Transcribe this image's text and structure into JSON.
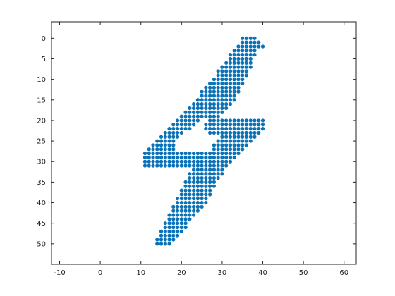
{
  "chart_data": {
    "type": "scatter",
    "title": "",
    "xlabel": "",
    "ylabel": "",
    "xlim": [
      -12,
      63
    ],
    "ylim": [
      -4,
      55
    ],
    "y_reversed": true,
    "grid": false,
    "legend": "none",
    "marker_color": "#0b72b8",
    "xticks": [
      -10,
      0,
      10,
      20,
      30,
      40,
      50,
      60
    ],
    "yticks": [
      0,
      5,
      10,
      15,
      20,
      25,
      30,
      35,
      40,
      45,
      50
    ],
    "series": [
      {
        "rows": [
          [
            0,
            35,
            38
          ],
          [
            1,
            35,
            39
          ],
          [
            2,
            34,
            40
          ],
          [
            3,
            33,
            38
          ],
          [
            4,
            32,
            38
          ],
          [
            5,
            32,
            37
          ],
          [
            6,
            31,
            37
          ],
          [
            7,
            30,
            37
          ],
          [
            8,
            29,
            36
          ],
          [
            9,
            29,
            36
          ],
          [
            10,
            28,
            35
          ],
          [
            11,
            27,
            35
          ],
          [
            12,
            26,
            34
          ],
          [
            13,
            25,
            34
          ],
          [
            14,
            25,
            33
          ],
          [
            15,
            24,
            33
          ],
          [
            16,
            23,
            32
          ],
          [
            17,
            22,
            31
          ],
          [
            18,
            21,
            30
          ],
          [
            19,
            20,
            29
          ],
          [
            20,
            19,
            24,
            27,
            40
          ],
          [
            21,
            18,
            23,
            26,
            40
          ],
          [
            22,
            17,
            22,
            26,
            40
          ],
          [
            23,
            16,
            20,
            27,
            39
          ],
          [
            24,
            15,
            19,
            30,
            38
          ],
          [
            25,
            14,
            18,
            29,
            37
          ],
          [
            26,
            13,
            18,
            28,
            36
          ],
          [
            27,
            12,
            18,
            28,
            35
          ],
          [
            28,
            11,
            26,
            27,
            34
          ],
          [
            29,
            11,
            26,
            26,
            33
          ],
          [
            30,
            11,
            25,
            26,
            32
          ],
          [
            31,
            11,
            25,
            26,
            31
          ],
          [
            32,
            23,
            30
          ],
          [
            33,
            22,
            30
          ],
          [
            34,
            22,
            29
          ],
          [
            35,
            21,
            28
          ],
          [
            36,
            21,
            28
          ],
          [
            37,
            20,
            27
          ],
          [
            38,
            20,
            27
          ],
          [
            39,
            19,
            26
          ],
          [
            40,
            19,
            26
          ],
          [
            41,
            18,
            25
          ],
          [
            42,
            18,
            24
          ],
          [
            43,
            17,
            23
          ],
          [
            44,
            17,
            22
          ],
          [
            45,
            16,
            21
          ],
          [
            46,
            16,
            21
          ],
          [
            47,
            15,
            20
          ],
          [
            48,
            15,
            19
          ],
          [
            49,
            14,
            18
          ],
          [
            50,
            14,
            17
          ]
        ]
      }
    ]
  }
}
